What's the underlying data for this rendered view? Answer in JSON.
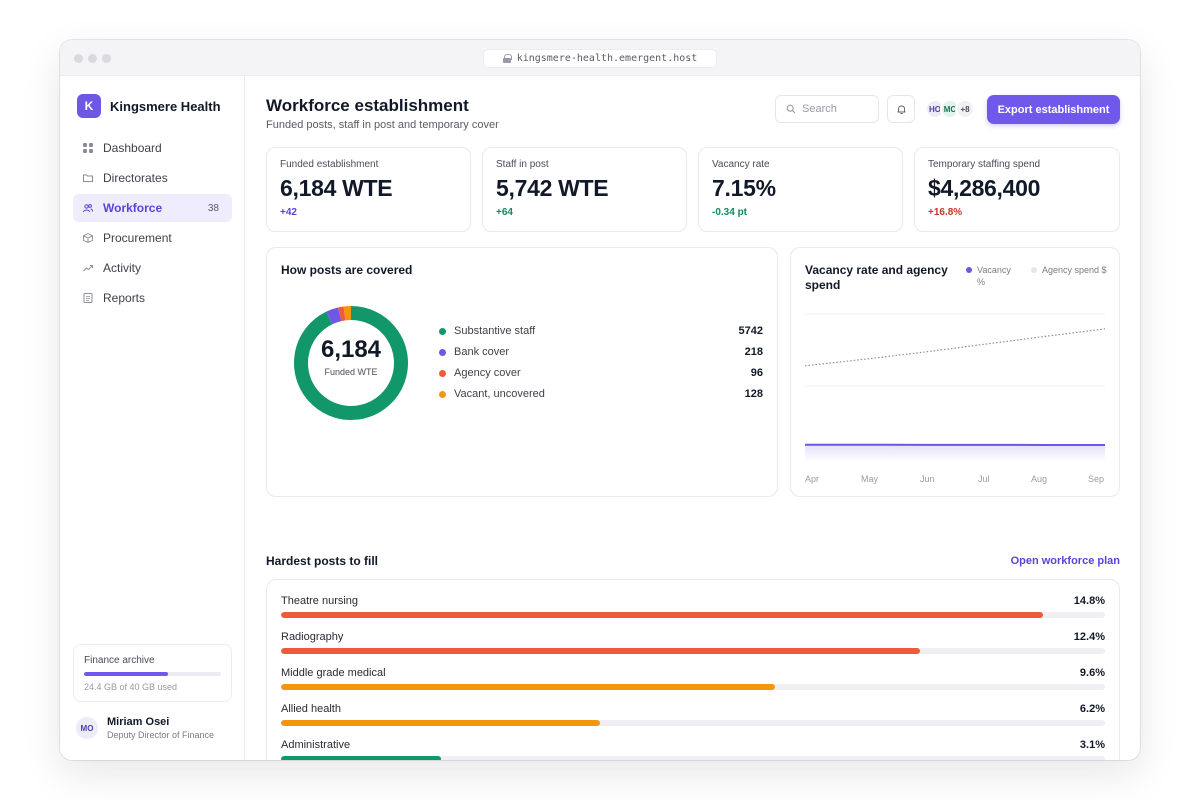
{
  "browser": {
    "url": "kingsmere-health.emergent.host"
  },
  "brand": {
    "logo_letter": "K",
    "name": "Kingsmere Health",
    "accent": "#6e56e6"
  },
  "sidebar": {
    "items": [
      {
        "label": "Dashboard",
        "icon": "grid-icon"
      },
      {
        "label": "Directorates",
        "icon": "folder-icon"
      },
      {
        "label": "Workforce",
        "icon": "users-icon",
        "badge": "38",
        "active": true
      },
      {
        "label": "Procurement",
        "icon": "box-icon"
      },
      {
        "label": "Activity",
        "icon": "trend-icon"
      },
      {
        "label": "Reports",
        "icon": "document-icon"
      }
    ],
    "storage": {
      "title": "Finance archive",
      "used_text": "24.4 GB of 40 GB used",
      "used_fraction": 0.61
    },
    "user": {
      "initials": "MO",
      "name": "Miriam Osei",
      "role": "Deputy Director of Finance"
    }
  },
  "header": {
    "title": "Workforce establishment",
    "subtitle": "Funded posts, staff in post and temporary cover",
    "search_placeholder": "Search",
    "avatars": [
      "HO",
      "MC"
    ],
    "avatars_more": "+8",
    "export_label": "Export establishment"
  },
  "kpis": [
    {
      "label": "Funded establishment",
      "value": "6,184 WTE",
      "delta": "+42",
      "delta_color": "#5b43d6"
    },
    {
      "label": "Staff in post",
      "value": "5,742 WTE",
      "delta": "+64",
      "delta_color": "#0f8a5c"
    },
    {
      "label": "Vacancy rate",
      "value": "7.15%",
      "delta": "-0.34 pt",
      "delta_color": "#0f8a5c"
    },
    {
      "label": "Temporary staffing spend",
      "value": "$4,286,400",
      "delta": "+16.8%",
      "delta_color": "#c8352a"
    }
  ],
  "coverage": {
    "title": "How posts are covered",
    "center_value": "6,184",
    "center_label": "Funded WTE",
    "segments": [
      {
        "label": "Substantive staff",
        "value": 5742,
        "display": "5742",
        "color": "#12976a"
      },
      {
        "label": "Bank cover",
        "value": 218,
        "display": "218",
        "color": "#6e56e6"
      },
      {
        "label": "Agency cover",
        "value": 96,
        "display": "96",
        "color": "#f05a3a"
      },
      {
        "label": "Vacant, uncovered",
        "value": 128,
        "display": "128",
        "color": "#f3960f"
      }
    ]
  },
  "trend": {
    "title": "Vacancy rate and agency spend",
    "legend": [
      {
        "label": "Vacancy %",
        "color": "#6e56e6"
      },
      {
        "label": "Agency spend $",
        "color": "#dedee4"
      }
    ],
    "months": [
      "Apr",
      "May",
      "Jun",
      "Jul",
      "Aug",
      "Sep"
    ]
  },
  "chart_data": {
    "type": "line",
    "title": "Vacancy rate and agency spend",
    "x": [
      "Apr",
      "May",
      "Jun",
      "Jul",
      "Aug",
      "Sep"
    ],
    "series": [
      {
        "name": "Vacancy %",
        "values": [
          7.49,
          7.42,
          7.35,
          7.28,
          7.22,
          7.15
        ],
        "color": "#6e56e6"
      },
      {
        "name": "Agency spend $",
        "values": [
          3670000,
          3780000,
          3900000,
          4030000,
          4160000,
          4286400
        ],
        "color": "#9a9aa6"
      }
    ],
    "grid": true,
    "legend_position": "top-right"
  },
  "hardest": {
    "title": "Hardest posts to fill",
    "link": "Open workforce plan",
    "scale_max": 16,
    "items": [
      {
        "label": "Theatre nursing",
        "value": 14.8,
        "display": "14.8%",
        "color": "#ef5a3a"
      },
      {
        "label": "Radiography",
        "value": 12.4,
        "display": "12.4%",
        "color": "#ef5a3a"
      },
      {
        "label": "Middle grade medical",
        "value": 9.6,
        "display": "9.6%",
        "color": "#f3960f"
      },
      {
        "label": "Allied health",
        "value": 6.2,
        "display": "6.2%",
        "color": "#f3960f"
      },
      {
        "label": "Administrative",
        "value": 3.1,
        "display": "3.1%",
        "color": "#12976a"
      }
    ]
  }
}
